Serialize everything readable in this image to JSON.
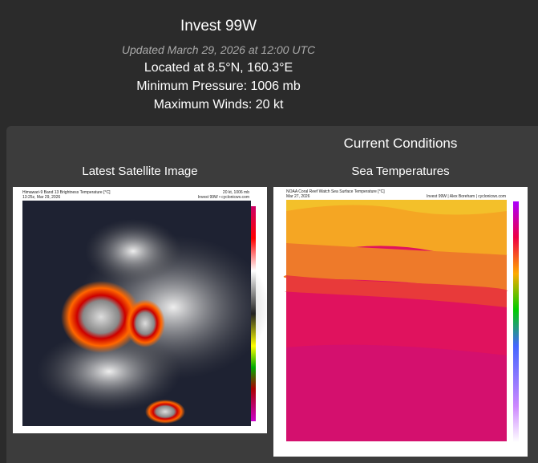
{
  "header": {
    "title": "Invest 99W",
    "updated": "Updated March 29, 2026 at 12:00 UTC",
    "location": "Located at 8.5°N, 160.3°E",
    "pressure": "Minimum Pressure: 1006 mb",
    "winds": "Maximum Winds: 20 kt"
  },
  "panel": {
    "title": "Current Conditions",
    "satellite": {
      "label": "Latest Satellite Image",
      "caption": "Himawari-9 Band 13 Brightness Temperature [°C]",
      "time": "13:25z, Mar 29, 2026",
      "intensity": "20 kt, 1006 mb",
      "credit": "Invest 99W • cyclonicwx.com"
    },
    "sst": {
      "label": "Sea Temperatures",
      "caption": "NOAA Coral Reef Watch Sea Surface Temperature [°C]",
      "time": "Mar 27, 2026",
      "credit": "Invest 99W | Alex Boreham | cyclonicwx.com"
    }
  }
}
